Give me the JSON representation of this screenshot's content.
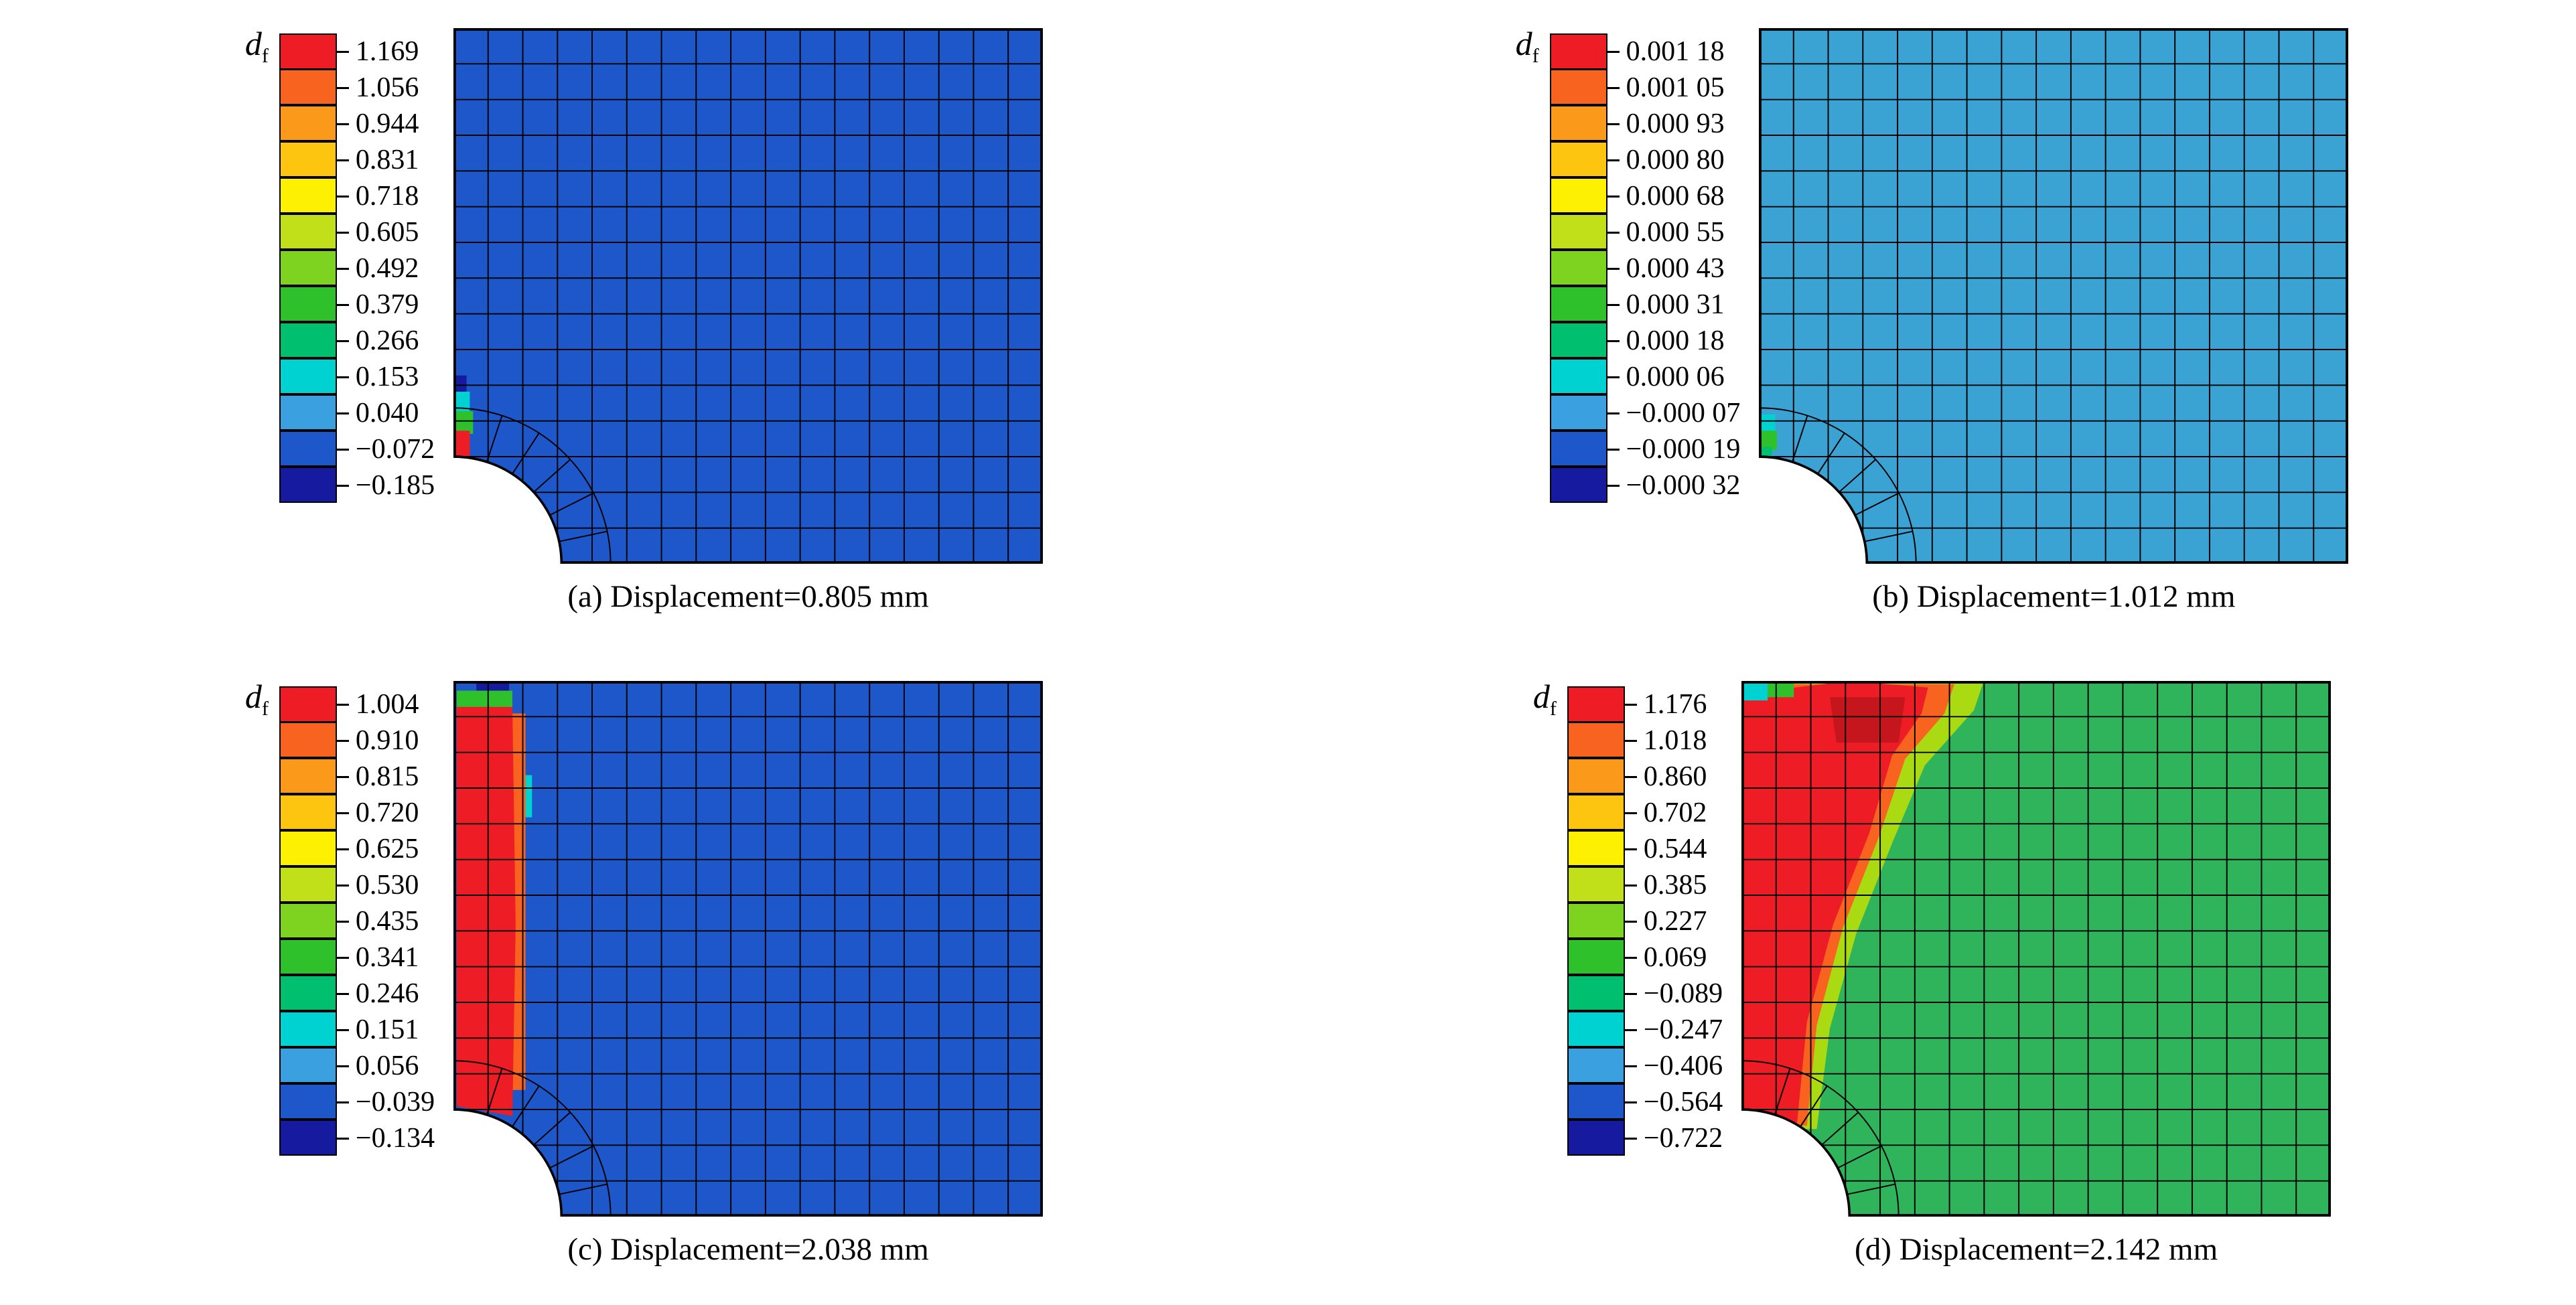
{
  "figure": {
    "legend_title": "d",
    "legend_title_sub": "f",
    "legend_colors": [
      "#ee1c25",
      "#f8641f",
      "#fb9a1a",
      "#fdc50f",
      "#fdf000",
      "#c2e01a",
      "#7ed321",
      "#2ec12c",
      "#00bf6f",
      "#00d2d2",
      "#3aa0e0",
      "#1e57c9",
      "#151a9e"
    ],
    "panels": [
      {
        "id": "a",
        "caption": "(a) Displacement=0.805 mm",
        "ticks": [
          "1.169",
          "1.056",
          "0.944",
          "0.831",
          "0.718",
          "0.605",
          "0.492",
          "0.379",
          "0.266",
          "0.153",
          "0.040",
          "−0.072",
          "−0.185"
        ],
        "mesh": {
          "base": "#1e57c9",
          "cols": 17,
          "rows": 15,
          "hole_r": 66,
          "regions": [
            {
              "color": "#151a9e",
              "points": [
                [
                  0,
                  214
                ],
                [
                  8,
                  214
                ],
                [
                  8,
                  226
                ],
                [
                  0,
                  226
                ]
              ]
            },
            {
              "color": "#00d2d2",
              "points": [
                [
                  0,
                  224
                ],
                [
                  10,
                  224
                ],
                [
                  10,
                  238
                ],
                [
                  0,
                  238
                ]
              ]
            },
            {
              "color": "#2ec12c",
              "points": [
                [
                  0,
                  236
                ],
                [
                  12,
                  236
                ],
                [
                  12,
                  250
                ],
                [
                  0,
                  250
                ]
              ]
            },
            {
              "color": "#ee1c25",
              "points": [
                [
                  0,
                  248
                ],
                [
                  10,
                  248
                ],
                [
                  10,
                  264
                ],
                [
                  0,
                  264
                ]
              ]
            }
          ]
        }
      },
      {
        "id": "b",
        "caption": "(b) Displacement=1.012 mm",
        "ticks": [
          "0.001 18",
          "0.001 05",
          "0.000 93",
          "0.000 80",
          "0.000 68",
          "0.000 55",
          "0.000 43",
          "0.000 31",
          "0.000 18",
          "0.000 06",
          "−0.000 07",
          "−0.000 19",
          "−0.000 32"
        ],
        "mesh": {
          "base": "#3ba3d4",
          "cols": 17,
          "rows": 15,
          "hole_r": 66,
          "regions": [
            {
              "color": "#00d2d2",
              "points": [
                [
                  0,
                  238
                ],
                [
                  10,
                  238
                ],
                [
                  10,
                  250
                ],
                [
                  0,
                  250
                ]
              ]
            },
            {
              "color": "#2ec12c",
              "points": [
                [
                  0,
                  248
                ],
                [
                  11,
                  248
                ],
                [
                  11,
                  260
                ],
                [
                  0,
                  260
                ]
              ]
            },
            {
              "color": "#00bf6f",
              "points": [
                [
                  0,
                  258
                ],
                [
                  8,
                  258
                ],
                [
                  8,
                  264
                ],
                [
                  0,
                  264
                ]
              ]
            }
          ]
        }
      },
      {
        "id": "c",
        "caption": "(c) Displacement=2.038 mm",
        "ticks": [
          "1.004",
          "0.910",
          "0.815",
          "0.720",
          "0.625",
          "0.530",
          "0.435",
          "0.341",
          "0.246",
          "0.151",
          "0.056",
          "−0.039",
          "−0.134"
        ],
        "mesh": {
          "base": "#1e57c9",
          "cols": 17,
          "rows": 15,
          "hole_r": 66,
          "regions": [
            {
              "color": "#151a9e",
              "points": [
                [
                  14,
                  0
                ],
                [
                  34,
                  0
                ],
                [
                  34,
                  9
                ],
                [
                  14,
                  9
                ]
              ]
            },
            {
              "color": "#2ec12c",
              "points": [
                [
                  2,
                  6
                ],
                [
                  36,
                  6
                ],
                [
                  36,
                  20
                ],
                [
                  2,
                  20
                ]
              ]
            },
            {
              "color": "#00d2d2",
              "points": [
                [
                  36,
                  58
                ],
                [
                  48,
                  58
                ],
                [
                  48,
                  84
                ],
                [
                  36,
                  84
                ]
              ]
            },
            {
              "color": "#f8641f",
              "points": [
                [
                  34,
                  20
                ],
                [
                  44,
                  20
                ],
                [
                  44,
                  252
                ],
                [
                  34,
                  252
                ]
              ]
            },
            {
              "color": "#ee1c25",
              "points": [
                [
                  2,
                  16
                ],
                [
                  36,
                  16
                ],
                [
                  38,
                  150
                ],
                [
                  36,
                  268
                ],
                [
                  2,
                  262
                ]
              ]
            }
          ]
        }
      },
      {
        "id": "d",
        "caption": "(d) Displacement=2.142 mm",
        "ticks": [
          "1.176",
          "1.018",
          "0.860",
          "0.702",
          "0.544",
          "0.385",
          "0.227",
          "0.069",
          "−0.089",
          "−0.247",
          "−0.406",
          "−0.564",
          "−0.722"
        ],
        "mesh": {
          "base": "#2fb45c",
          "cols": 17,
          "rows": 15,
          "hole_r": 66,
          "regions": [
            {
              "color": "#aadb12",
              "points": [
                [
                  0,
                  0
                ],
                [
                  148,
                  0
                ],
                [
                  142,
                  18
                ],
                [
                  112,
                  52
                ],
                [
                  92,
                  100
                ],
                [
                  70,
                  156
                ],
                [
                  54,
                  214
                ],
                [
                  46,
                  276
                ],
                [
                  0,
                  276
                ]
              ]
            },
            {
              "color": "#f8641f",
              "points": [
                [
                  0,
                  2
                ],
                [
                  130,
                  2
                ],
                [
                  124,
                  20
                ],
                [
                  100,
                  48
                ],
                [
                  84,
                  96
                ],
                [
                  62,
                  152
                ],
                [
                  46,
                  212
                ],
                [
                  40,
                  274
                ],
                [
                  0,
                  274
                ]
              ]
            },
            {
              "color": "#ee1c25",
              "points": [
                [
                  0,
                  8
                ],
                [
                  66,
                  0
                ],
                [
                  114,
                  4
                ],
                [
                  110,
                  20
                ],
                [
                  92,
                  46
                ],
                [
                  78,
                  94
                ],
                [
                  56,
                  150
                ],
                [
                  40,
                  210
                ],
                [
                  34,
                  272
                ],
                [
                  0,
                  272
                ]
              ]
            },
            {
              "color": "#c4161c",
              "points": [
                [
                  54,
                  10
                ],
                [
                  100,
                  10
                ],
                [
                  96,
                  38
                ],
                [
                  58,
                  38
                ]
              ]
            },
            {
              "color": "#00d2d2",
              "points": [
                [
                  0,
                  0
                ],
                [
                  16,
                  0
                ],
                [
                  16,
                  12
                ],
                [
                  0,
                  12
                ]
              ]
            },
            {
              "color": "#2ec12c",
              "points": [
                [
                  16,
                  0
                ],
                [
                  32,
                  0
                ],
                [
                  32,
                  10
                ],
                [
                  16,
                  10
                ]
              ]
            }
          ]
        }
      }
    ]
  },
  "chart_data": [
    {
      "type": "heatmap",
      "title": "(a) Displacement=0.805 mm",
      "legend_label": "d_f",
      "displacement_mm": 0.805,
      "colorbar_ticks": [
        1.169,
        1.056,
        0.944,
        0.831,
        0.718,
        0.605,
        0.492,
        0.379,
        0.266,
        0.153,
        0.04,
        -0.072,
        -0.185
      ],
      "colorbar_range": [
        -0.185,
        1.169
      ],
      "legend_position": "left",
      "description": "Quarter plate with hole FE mesh; field nearly uniform at low blue level with a tiny localized damage spot at the hole edge on the left boundary."
    },
    {
      "type": "heatmap",
      "title": "(b) Displacement=1.012 mm",
      "legend_label": "d_f",
      "displacement_mm": 1.012,
      "colorbar_ticks": [
        0.00118,
        0.00105,
        0.00093,
        0.0008,
        0.00068,
        0.00055,
        0.00043,
        0.00031,
        0.00018,
        6e-05,
        -7e-05,
        -0.00019,
        -0.00032
      ],
      "colorbar_range": [
        -0.00032,
        0.00118
      ],
      "legend_position": "left",
      "description": "Nearly uniform light-blue field with a tiny green spot at the hole edge on the left boundary."
    },
    {
      "type": "heatmap",
      "title": "(c) Displacement=2.038 mm",
      "legend_label": "d_f",
      "displacement_mm": 2.038,
      "colorbar_ticks": [
        1.004,
        0.91,
        0.815,
        0.72,
        0.625,
        0.53,
        0.435,
        0.341,
        0.246,
        0.151,
        0.056,
        -0.039,
        -0.134
      ],
      "colorbar_range": [
        -0.134,
        1.004
      ],
      "legend_position": "left",
      "description": "Blue field with a narrow red damage band running down the left edge from near the top to the hole."
    },
    {
      "type": "heatmap",
      "title": "(d) Displacement=2.142 mm",
      "legend_label": "d_f",
      "displacement_mm": 2.142,
      "colorbar_ticks": [
        1.176,
        1.018,
        0.86,
        0.702,
        0.544,
        0.385,
        0.227,
        0.069,
        -0.089,
        -0.247,
        -0.406,
        -0.564,
        -0.722
      ],
      "colorbar_range": [
        -0.722,
        1.176
      ],
      "legend_position": "left",
      "description": "Green field with a wide red damage zone along the upper-left edge tapering down to the hole, fringed by orange and yellow-green."
    }
  ]
}
